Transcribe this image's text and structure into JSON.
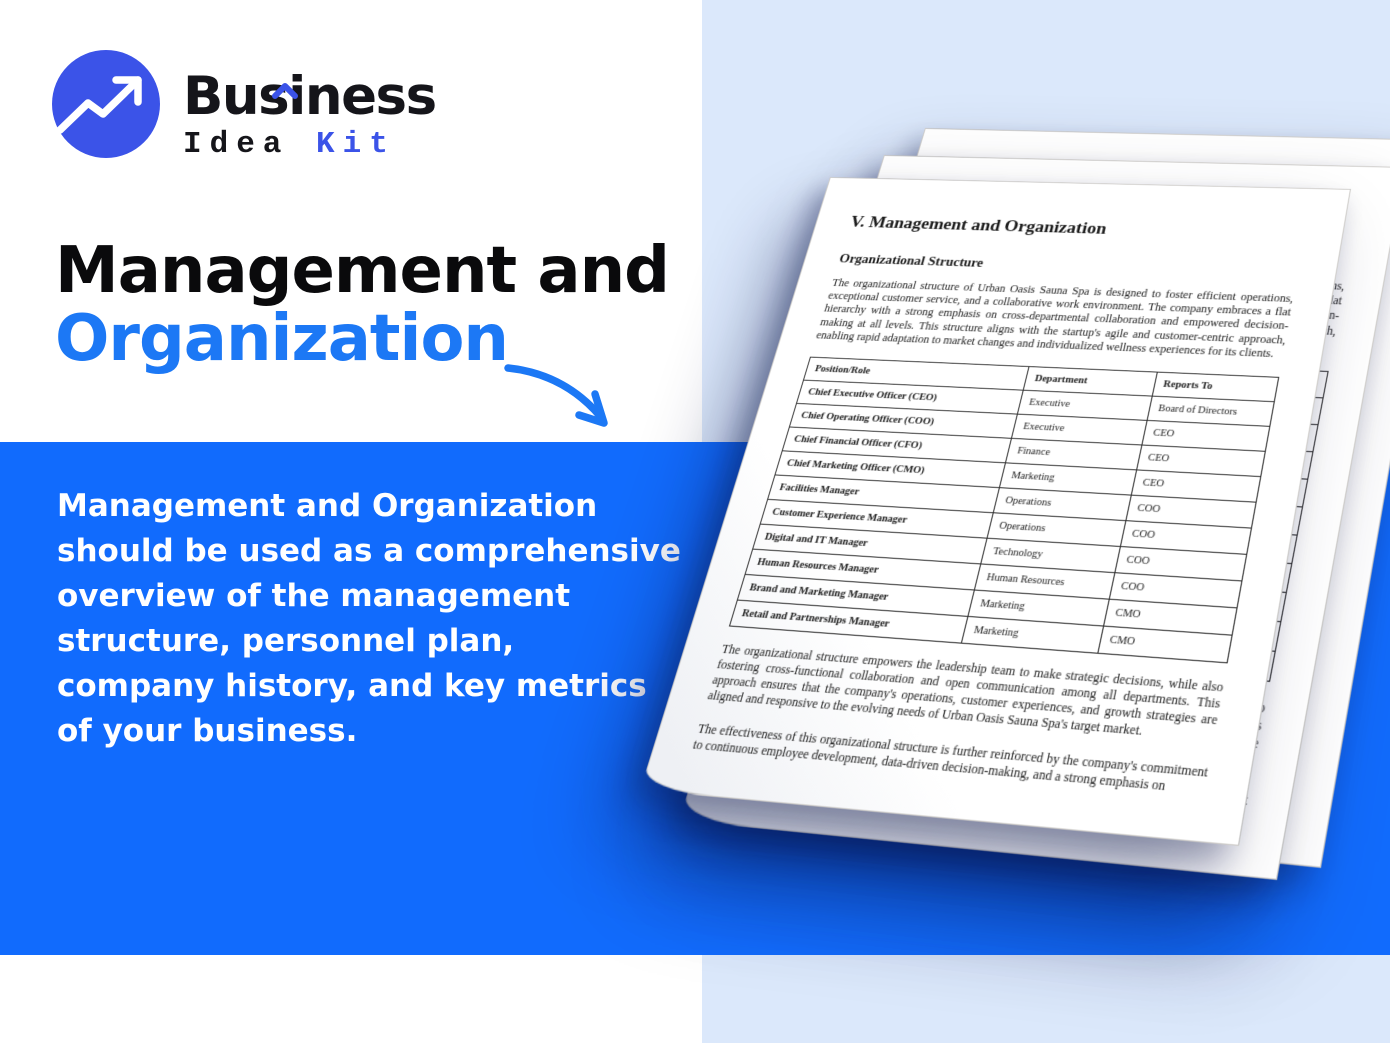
{
  "brand": {
    "name_top": "Business",
    "name_bottom_dark": "Idea",
    "name_bottom_accent": "Kit"
  },
  "hero": {
    "title_line1": "Management and",
    "title_line2": "Organization",
    "description_lines": [
      "Management and Organization",
      "should be used as a comprehensive",
      "overview of the management",
      "structure, personnel plan,",
      "company history, and key metrics",
      "of your business."
    ]
  },
  "document": {
    "title": "V. Management and Organization",
    "section_heading": "Organizational Structure",
    "intro_paragraph": "The organizational structure of Urban Oasis Sauna Spa is designed to foster efficient operations, exceptional customer service, and a collaborative work environment. The company embraces a flat hierarchy with a strong emphasis on cross-departmental collaboration and empowered decision-making at all levels. This structure aligns with the startup's agile and customer-centric approach, enabling rapid adaptation to market changes and individualized wellness experiences for its clients.",
    "table": {
      "headers": [
        "Position/Role",
        "Department",
        "Reports To"
      ],
      "rows": [
        [
          "Chief Executive Officer (CEO)",
          "Executive",
          "Board of Directors"
        ],
        [
          "Chief Operating Officer (COO)",
          "Executive",
          "CEO"
        ],
        [
          "Chief Financial Officer (CFO)",
          "Finance",
          "CEO"
        ],
        [
          "Chief Marketing Officer (CMO)",
          "Marketing",
          "CEO"
        ],
        [
          "Facilities Manager",
          "Operations",
          "COO"
        ],
        [
          "Customer Experience Manager",
          "Operations",
          "COO"
        ],
        [
          "Digital and IT Manager",
          "Technology",
          "COO"
        ],
        [
          "Human Resources Manager",
          "Human Resources",
          "COO"
        ],
        [
          "Brand and Marketing Manager",
          "Marketing",
          "CMO"
        ],
        [
          "Retail and Partnerships Manager",
          "Marketing",
          "CMO"
        ]
      ]
    },
    "closing_paragraphs": [
      "The organizational structure empowers the leadership team to make strategic decisions, while also fostering cross-functional collaboration and open communication among all departments. This approach ensures that the company's operations, customer experiences, and growth strategies are aligned and responsive to the evolving needs of Urban Oasis Sauna Spa's target market.",
      "The effectiveness of this organizational structure is further reinforced by the company's commitment to continuous employee development, data-driven decision-making, and a strong emphasis on"
    ]
  },
  "icons": {
    "logo_icon": "trend-up-arrow-icon",
    "title_caret": "caret-icon",
    "heading_pointer": "curved-arrow-icon"
  },
  "colors": {
    "band_blue": "#116bfd",
    "panel_light_blue": "#dbe8fb",
    "heading_accent_blue": "#1c78f5",
    "logo_indigo": "#3b53e8",
    "text_dark": "#0a0a0c",
    "page_white": "#ffffff"
  }
}
